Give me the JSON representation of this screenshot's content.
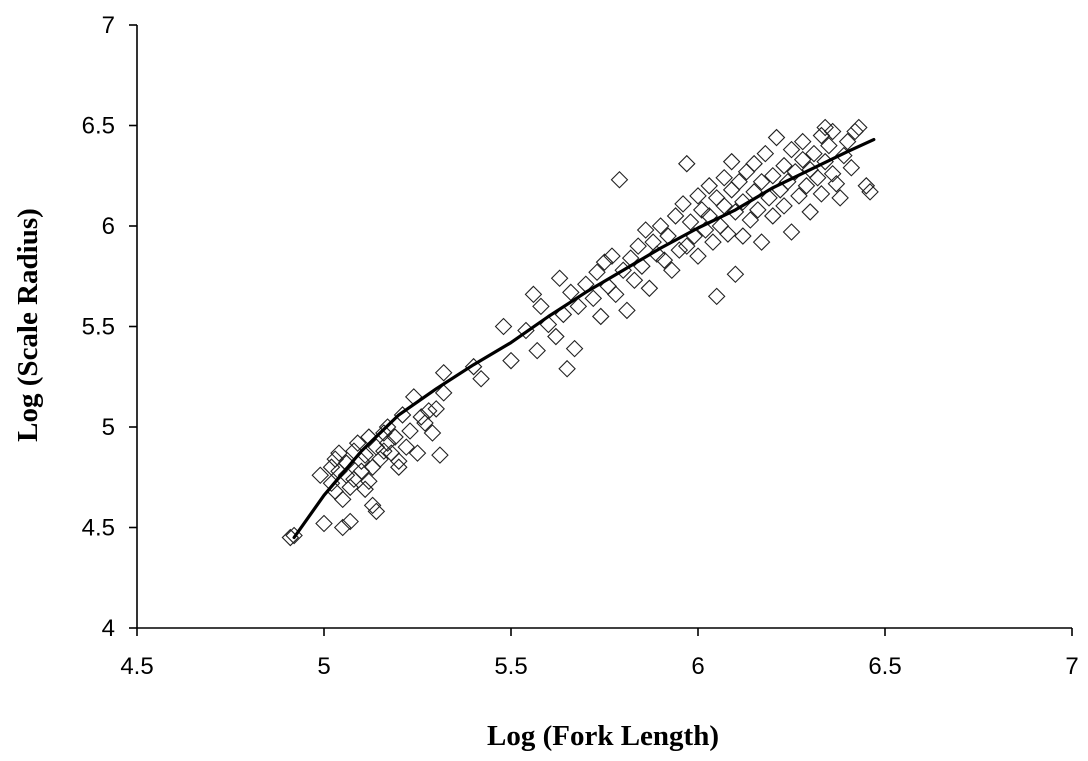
{
  "chart_data": {
    "type": "scatter",
    "xlabel": "Log (Fork Length)",
    "ylabel": "Log (Scale Radius)",
    "xlim": [
      4.5,
      7
    ],
    "ylim": [
      4,
      7
    ],
    "xticks": [
      "4.5",
      "5",
      "5.5",
      "6",
      "6.5",
      "7"
    ],
    "yticks": [
      "4",
      "4.5",
      "5",
      "5.5",
      "6",
      "6.5",
      "7"
    ],
    "grid": false,
    "marker": "diamond-open",
    "points": [
      [
        4.91,
        4.45
      ],
      [
        4.92,
        4.46
      ],
      [
        4.99,
        4.76
      ],
      [
        5.0,
        4.52
      ],
      [
        5.02,
        4.72
      ],
      [
        5.02,
        4.8
      ],
      [
        5.03,
        4.84
      ],
      [
        5.03,
        4.68
      ],
      [
        5.04,
        4.87
      ],
      [
        5.04,
        4.78
      ],
      [
        5.05,
        4.5
      ],
      [
        5.05,
        4.64
      ],
      [
        5.06,
        4.76
      ],
      [
        5.06,
        4.82
      ],
      [
        5.07,
        4.53
      ],
      [
        5.07,
        4.7
      ],
      [
        5.08,
        4.74
      ],
      [
        5.08,
        4.88
      ],
      [
        5.09,
        4.92
      ],
      [
        5.1,
        4.78
      ],
      [
        5.1,
        4.83
      ],
      [
        5.11,
        4.69
      ],
      [
        5.11,
        4.86
      ],
      [
        5.12,
        4.95
      ],
      [
        5.12,
        4.73
      ],
      [
        5.13,
        4.61
      ],
      [
        5.13,
        4.8
      ],
      [
        5.14,
        4.58
      ],
      [
        5.14,
        4.9
      ],
      [
        5.15,
        4.84
      ],
      [
        5.16,
        4.97
      ],
      [
        5.16,
        4.88
      ],
      [
        5.17,
        5.0
      ],
      [
        5.17,
        4.92
      ],
      [
        5.18,
        4.87
      ],
      [
        5.19,
        4.95
      ],
      [
        5.2,
        4.83
      ],
      [
        5.2,
        4.8
      ],
      [
        5.21,
        5.06
      ],
      [
        5.22,
        4.9
      ],
      [
        5.23,
        4.98
      ],
      [
        5.24,
        5.15
      ],
      [
        5.25,
        4.87
      ],
      [
        5.26,
        5.05
      ],
      [
        5.27,
        5.02
      ],
      [
        5.28,
        5.08
      ],
      [
        5.29,
        4.97
      ],
      [
        5.3,
        5.09
      ],
      [
        5.31,
        4.86
      ],
      [
        5.32,
        5.27
      ],
      [
        5.32,
        5.17
      ],
      [
        5.4,
        5.3
      ],
      [
        5.42,
        5.24
      ],
      [
        5.48,
        5.5
      ],
      [
        5.5,
        5.33
      ],
      [
        5.54,
        5.48
      ],
      [
        5.56,
        5.66
      ],
      [
        5.57,
        5.38
      ],
      [
        5.58,
        5.6
      ],
      [
        5.6,
        5.51
      ],
      [
        5.62,
        5.45
      ],
      [
        5.63,
        5.74
      ],
      [
        5.64,
        5.56
      ],
      [
        5.65,
        5.29
      ],
      [
        5.66,
        5.67
      ],
      [
        5.67,
        5.39
      ],
      [
        5.68,
        5.6
      ],
      [
        5.7,
        5.71
      ],
      [
        5.72,
        5.64
      ],
      [
        5.73,
        5.77
      ],
      [
        5.74,
        5.55
      ],
      [
        5.75,
        5.82
      ],
      [
        5.76,
        5.7
      ],
      [
        5.77,
        5.85
      ],
      [
        5.78,
        5.66
      ],
      [
        5.79,
        6.23
      ],
      [
        5.8,
        5.78
      ],
      [
        5.81,
        5.58
      ],
      [
        5.82,
        5.84
      ],
      [
        5.83,
        5.73
      ],
      [
        5.84,
        5.9
      ],
      [
        5.85,
        5.8
      ],
      [
        5.86,
        5.98
      ],
      [
        5.87,
        5.69
      ],
      [
        5.88,
        5.92
      ],
      [
        5.89,
        5.86
      ],
      [
        5.9,
        6.0
      ],
      [
        5.91,
        5.83
      ],
      [
        5.92,
        5.95
      ],
      [
        5.93,
        5.78
      ],
      [
        5.94,
        6.05
      ],
      [
        5.95,
        5.88
      ],
      [
        5.96,
        6.11
      ],
      [
        5.97,
        5.9
      ],
      [
        5.97,
        6.31
      ],
      [
        5.98,
        6.02
      ],
      [
        5.99,
        5.95
      ],
      [
        6.0,
        6.15
      ],
      [
        6.0,
        5.85
      ],
      [
        6.01,
        6.08
      ],
      [
        6.02,
        5.98
      ],
      [
        6.03,
        6.2
      ],
      [
        6.03,
        6.05
      ],
      [
        6.04,
        5.92
      ],
      [
        6.05,
        6.14
      ],
      [
        6.05,
        5.65
      ],
      [
        6.06,
        6.0
      ],
      [
        6.07,
        6.24
      ],
      [
        6.07,
        6.1
      ],
      [
        6.08,
        5.96
      ],
      [
        6.09,
        6.18
      ],
      [
        6.09,
        6.32
      ],
      [
        6.1,
        5.76
      ],
      [
        6.1,
        6.07
      ],
      [
        6.11,
        6.22
      ],
      [
        6.12,
        6.12
      ],
      [
        6.12,
        5.95
      ],
      [
        6.13,
        6.27
      ],
      [
        6.14,
        6.03
      ],
      [
        6.15,
        6.17
      ],
      [
        6.15,
        6.31
      ],
      [
        6.16,
        6.08
      ],
      [
        6.17,
        6.22
      ],
      [
        6.17,
        5.92
      ],
      [
        6.18,
        6.36
      ],
      [
        6.19,
        6.14
      ],
      [
        6.2,
        6.25
      ],
      [
        6.2,
        6.05
      ],
      [
        6.21,
        6.44
      ],
      [
        6.22,
        6.18
      ],
      [
        6.23,
        6.3
      ],
      [
        6.23,
        6.1
      ],
      [
        6.24,
        6.22
      ],
      [
        6.25,
        6.38
      ],
      [
        6.25,
        5.97
      ],
      [
        6.26,
        6.27
      ],
      [
        6.27,
        6.15
      ],
      [
        6.28,
        6.33
      ],
      [
        6.28,
        6.42
      ],
      [
        6.29,
        6.2
      ],
      [
        6.3,
        6.28
      ],
      [
        6.3,
        6.07
      ],
      [
        6.31,
        6.36
      ],
      [
        6.32,
        6.24
      ],
      [
        6.33,
        6.45
      ],
      [
        6.33,
        6.16
      ],
      [
        6.34,
        6.32
      ],
      [
        6.35,
        6.4
      ],
      [
        6.36,
        6.26
      ],
      [
        6.37,
        6.21
      ],
      [
        6.38,
        6.14
      ],
      [
        6.39,
        6.35
      ],
      [
        6.4,
        6.42
      ],
      [
        6.41,
        6.29
      ],
      [
        6.42,
        6.47
      ],
      [
        6.45,
        6.2
      ],
      [
        6.46,
        6.17
      ],
      [
        6.43,
        6.49
      ],
      [
        6.36,
        6.47
      ],
      [
        6.34,
        6.49
      ]
    ],
    "trendline": [
      [
        4.92,
        4.45
      ],
      [
        5.0,
        4.66
      ],
      [
        5.1,
        4.88
      ],
      [
        5.2,
        5.06
      ],
      [
        5.3,
        5.19
      ],
      [
        5.4,
        5.31
      ],
      [
        5.5,
        5.42
      ],
      [
        5.6,
        5.55
      ],
      [
        5.7,
        5.67
      ],
      [
        5.8,
        5.78
      ],
      [
        5.9,
        5.89
      ],
      [
        6.0,
        5.99
      ],
      [
        6.1,
        6.08
      ],
      [
        6.2,
        6.19
      ],
      [
        6.3,
        6.28
      ],
      [
        6.4,
        6.37
      ],
      [
        6.47,
        6.43
      ]
    ]
  }
}
